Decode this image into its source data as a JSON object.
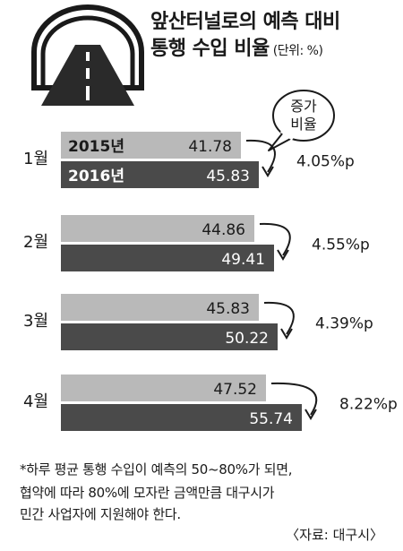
{
  "title_line1": "앞산터널로의 예측 대비",
  "title_line2": "통행 수입 비율",
  "unit": "(단위: %)",
  "callout": {
    "line1": "증가",
    "line2": "비율"
  },
  "colors": {
    "bar2015": "#b9b9b9",
    "bar2016": "#4a4a4a",
    "text": "#1a1a1a"
  },
  "chart_data": {
    "type": "bar",
    "orientation": "horizontal",
    "categories": [
      "1월",
      "2월",
      "3월",
      "4월"
    ],
    "series": [
      {
        "name": "2015년",
        "values": [
          41.78,
          44.86,
          45.83,
          47.52
        ]
      },
      {
        "name": "2016년",
        "values": [
          45.83,
          49.41,
          50.22,
          55.74
        ]
      }
    ],
    "value_labels_2015": [
      "41.78",
      "44.86",
      "45.83",
      "47.52"
    ],
    "value_labels_2016": [
      "45.83",
      "49.41",
      "50.22",
      "55.74"
    ],
    "increase_labels": [
      "4.05%p",
      "4.55%p",
      "4.39%p",
      "8.22%p"
    ]
  },
  "notes": [
    "*하루 평균 통행 수입이 예측의 50~80%가 되면,",
    "협약에 따라 80%에 모자란 금액만큼 대구시가",
    "민간 사업자에 지원해야 한다."
  ],
  "source": "〈자료: 대구시〉"
}
